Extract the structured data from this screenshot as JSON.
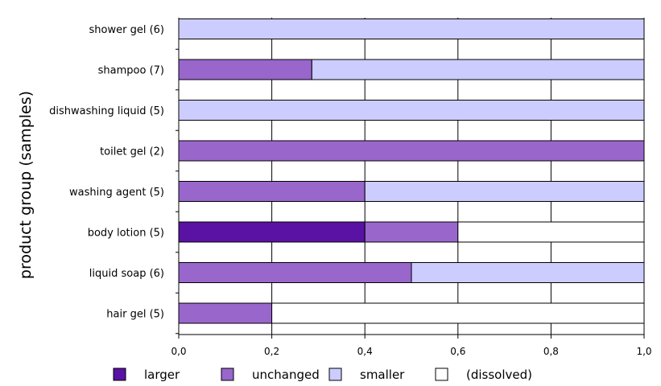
{
  "chart_data": {
    "type": "bar",
    "orientation": "horizontal",
    "stacked": true,
    "title": "",
    "xlabel": "",
    "ylabel": "product group (samples)",
    "xlim": [
      0,
      1
    ],
    "x_ticks": [
      "0,0",
      "0,2",
      "0,4",
      "0,6",
      "0,8",
      "1,0"
    ],
    "x_tick_values": [
      0,
      0.2,
      0.4,
      0.6,
      0.8,
      1.0
    ],
    "grid": "vertical",
    "legend_position": "bottom",
    "categories": [
      "shower gel (6)",
      "shampoo (7)",
      "dishwashing liquid (5)",
      "toilet gel (2)",
      "washing agent (5)",
      "body lotion (5)",
      "liquid soap (6)",
      "hair gel (5)"
    ],
    "series": [
      {
        "name": "larger",
        "color": "#5a12a4",
        "values": [
          0,
          0,
          0,
          0,
          0,
          0.4,
          0,
          0
        ]
      },
      {
        "name": "unchanged",
        "color": "#9966cc",
        "values": [
          0,
          0.286,
          0,
          1.0,
          0.4,
          0.2,
          0.5,
          0.2
        ]
      },
      {
        "name": "smaller",
        "color": "#ccccff",
        "values": [
          1.0,
          0.714,
          1.0,
          0,
          0.6,
          0,
          0.5,
          0
        ]
      },
      {
        "name": "(dissolved)",
        "color": "#ffffff",
        "values": [
          0,
          0,
          0,
          0,
          0,
          0.4,
          0,
          0.8
        ]
      }
    ]
  }
}
